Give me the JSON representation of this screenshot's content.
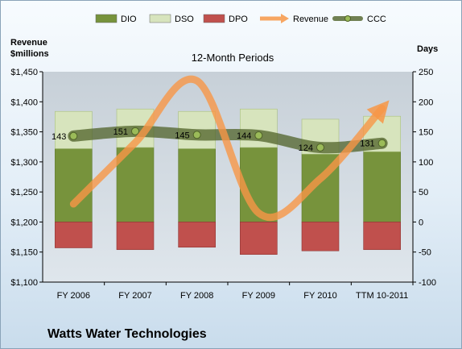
{
  "chart_data": {
    "type": "bar",
    "title": "12-Month Periods",
    "company": "Watts Water Technologies",
    "categories": [
      "FY 2006",
      "FY 2007",
      "FY 2008",
      "FY 2009",
      "FY 2010",
      "TTM 10-2011"
    ],
    "left_axis": {
      "label_line1": "Revenue",
      "label_line2": "$millions",
      "range": [
        1100,
        1450
      ],
      "ticks": [
        "$1,100",
        "$1,150",
        "$1,200",
        "$1,250",
        "$1,300",
        "$1,350",
        "$1,400",
        "$1,450"
      ]
    },
    "right_axis": {
      "label": "Days",
      "range": [
        -100,
        250
      ],
      "ticks": [
        "-100",
        "-50",
        "0",
        "50",
        "100",
        "150",
        "200",
        "250"
      ]
    },
    "series": [
      {
        "name": "DIO",
        "kind": "stacked-bar",
        "axis": "right",
        "color": "#77933c",
        "values": [
          122,
          124,
          122,
          124,
          113,
          117
        ]
      },
      {
        "name": "DSO",
        "kind": "stacked-bar",
        "axis": "right",
        "color": "#d7e4bd",
        "values": [
          62,
          64,
          62,
          64,
          58,
          59
        ]
      },
      {
        "name": "DPO",
        "kind": "negative-bar",
        "axis": "right",
        "color": "#c0504d",
        "values": [
          -43,
          -46,
          -42,
          -54,
          -48,
          -46
        ]
      },
      {
        "name": "Revenue",
        "kind": "line",
        "axis": "left",
        "color": "#f79646",
        "values": [
          1230,
          1332,
          1435,
          1215,
          1272,
          1389
        ]
      },
      {
        "name": "CCC",
        "kind": "line",
        "axis": "right",
        "color": "#4f6228",
        "values": [
          143,
          151,
          145,
          144,
          124,
          131
        ],
        "labels": [
          "143",
          "151",
          "145",
          "144",
          "124",
          "131"
        ]
      }
    ],
    "grid": false,
    "legend_position": "top"
  }
}
